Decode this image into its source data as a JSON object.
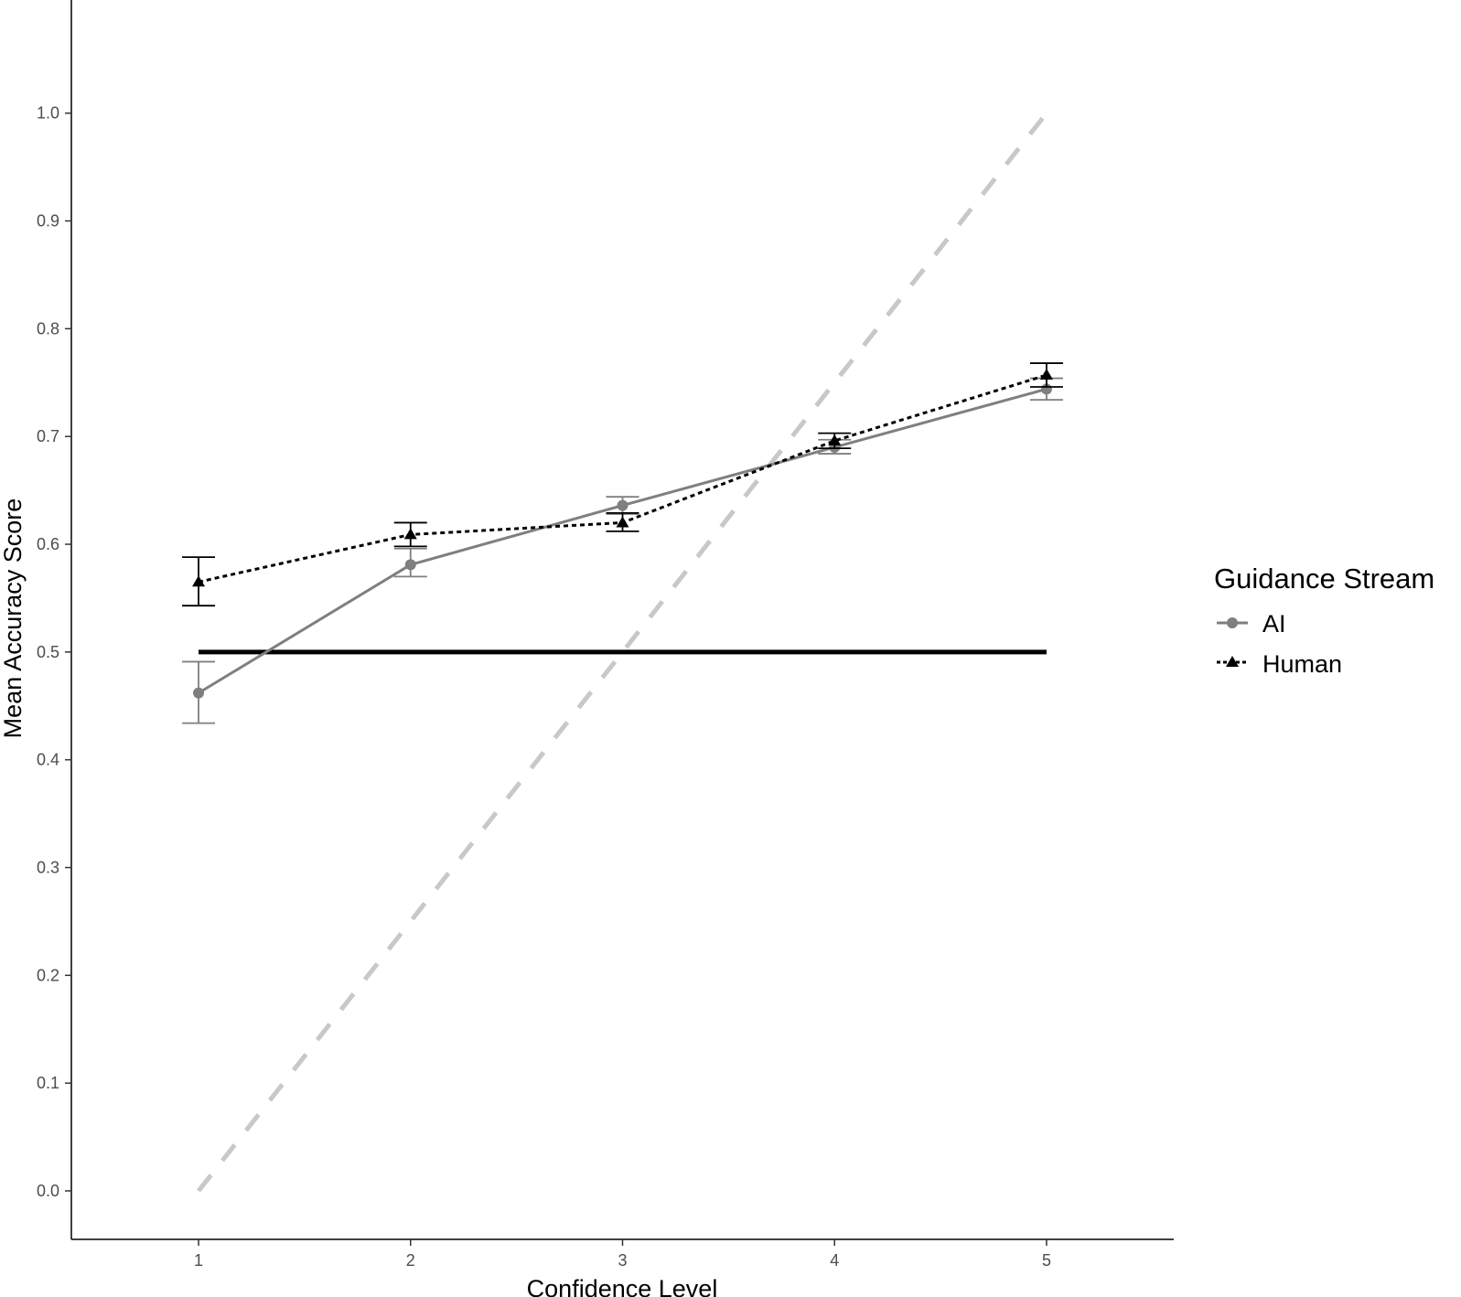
{
  "chart_data": {
    "type": "line",
    "title": "",
    "xlabel": "Confidence Level",
    "ylabel": "Mean Accuracy Score",
    "x": [
      1,
      2,
      3,
      4,
      5
    ],
    "x_ticks": [
      "1",
      "2",
      "3",
      "4",
      "5"
    ],
    "y_ticks": [
      "0.0",
      "0.1",
      "0.2",
      "0.3",
      "0.4",
      "0.5",
      "0.6",
      "0.7",
      "0.8",
      "0.9",
      "1.0"
    ],
    "xlim": [
      0.4,
      5.6
    ],
    "ylim": [
      -0.045,
      1.105
    ],
    "grid": false,
    "legend": {
      "title": "Guidance Stream",
      "placement": "right"
    },
    "series": [
      {
        "name": "AI",
        "values": [
          0.462,
          0.581,
          0.636,
          0.69,
          0.744
        ],
        "error_low": [
          0.434,
          0.57,
          0.628,
          0.684,
          0.734
        ],
        "error_high": [
          0.491,
          0.596,
          0.644,
          0.697,
          0.754
        ],
        "color": "#7f7f7f",
        "line": "solid",
        "marker": "circle"
      },
      {
        "name": "Human",
        "values": [
          0.565,
          0.609,
          0.62,
          0.696,
          0.757
        ],
        "error_low": [
          0.543,
          0.598,
          0.612,
          0.689,
          0.746
        ],
        "error_high": [
          0.588,
          0.62,
          0.629,
          0.703,
          0.768
        ],
        "color": "#000000",
        "line": "dotted",
        "marker": "triangle"
      }
    ],
    "reference_lines": [
      {
        "x": [
          1,
          5
        ],
        "y": [
          0.5,
          0.5
        ],
        "color": "#000000",
        "style": "solid"
      },
      {
        "x": [
          1,
          5
        ],
        "y": [
          0.0,
          1.0
        ],
        "color": "#c8c8c8",
        "style": "dashed"
      }
    ]
  }
}
